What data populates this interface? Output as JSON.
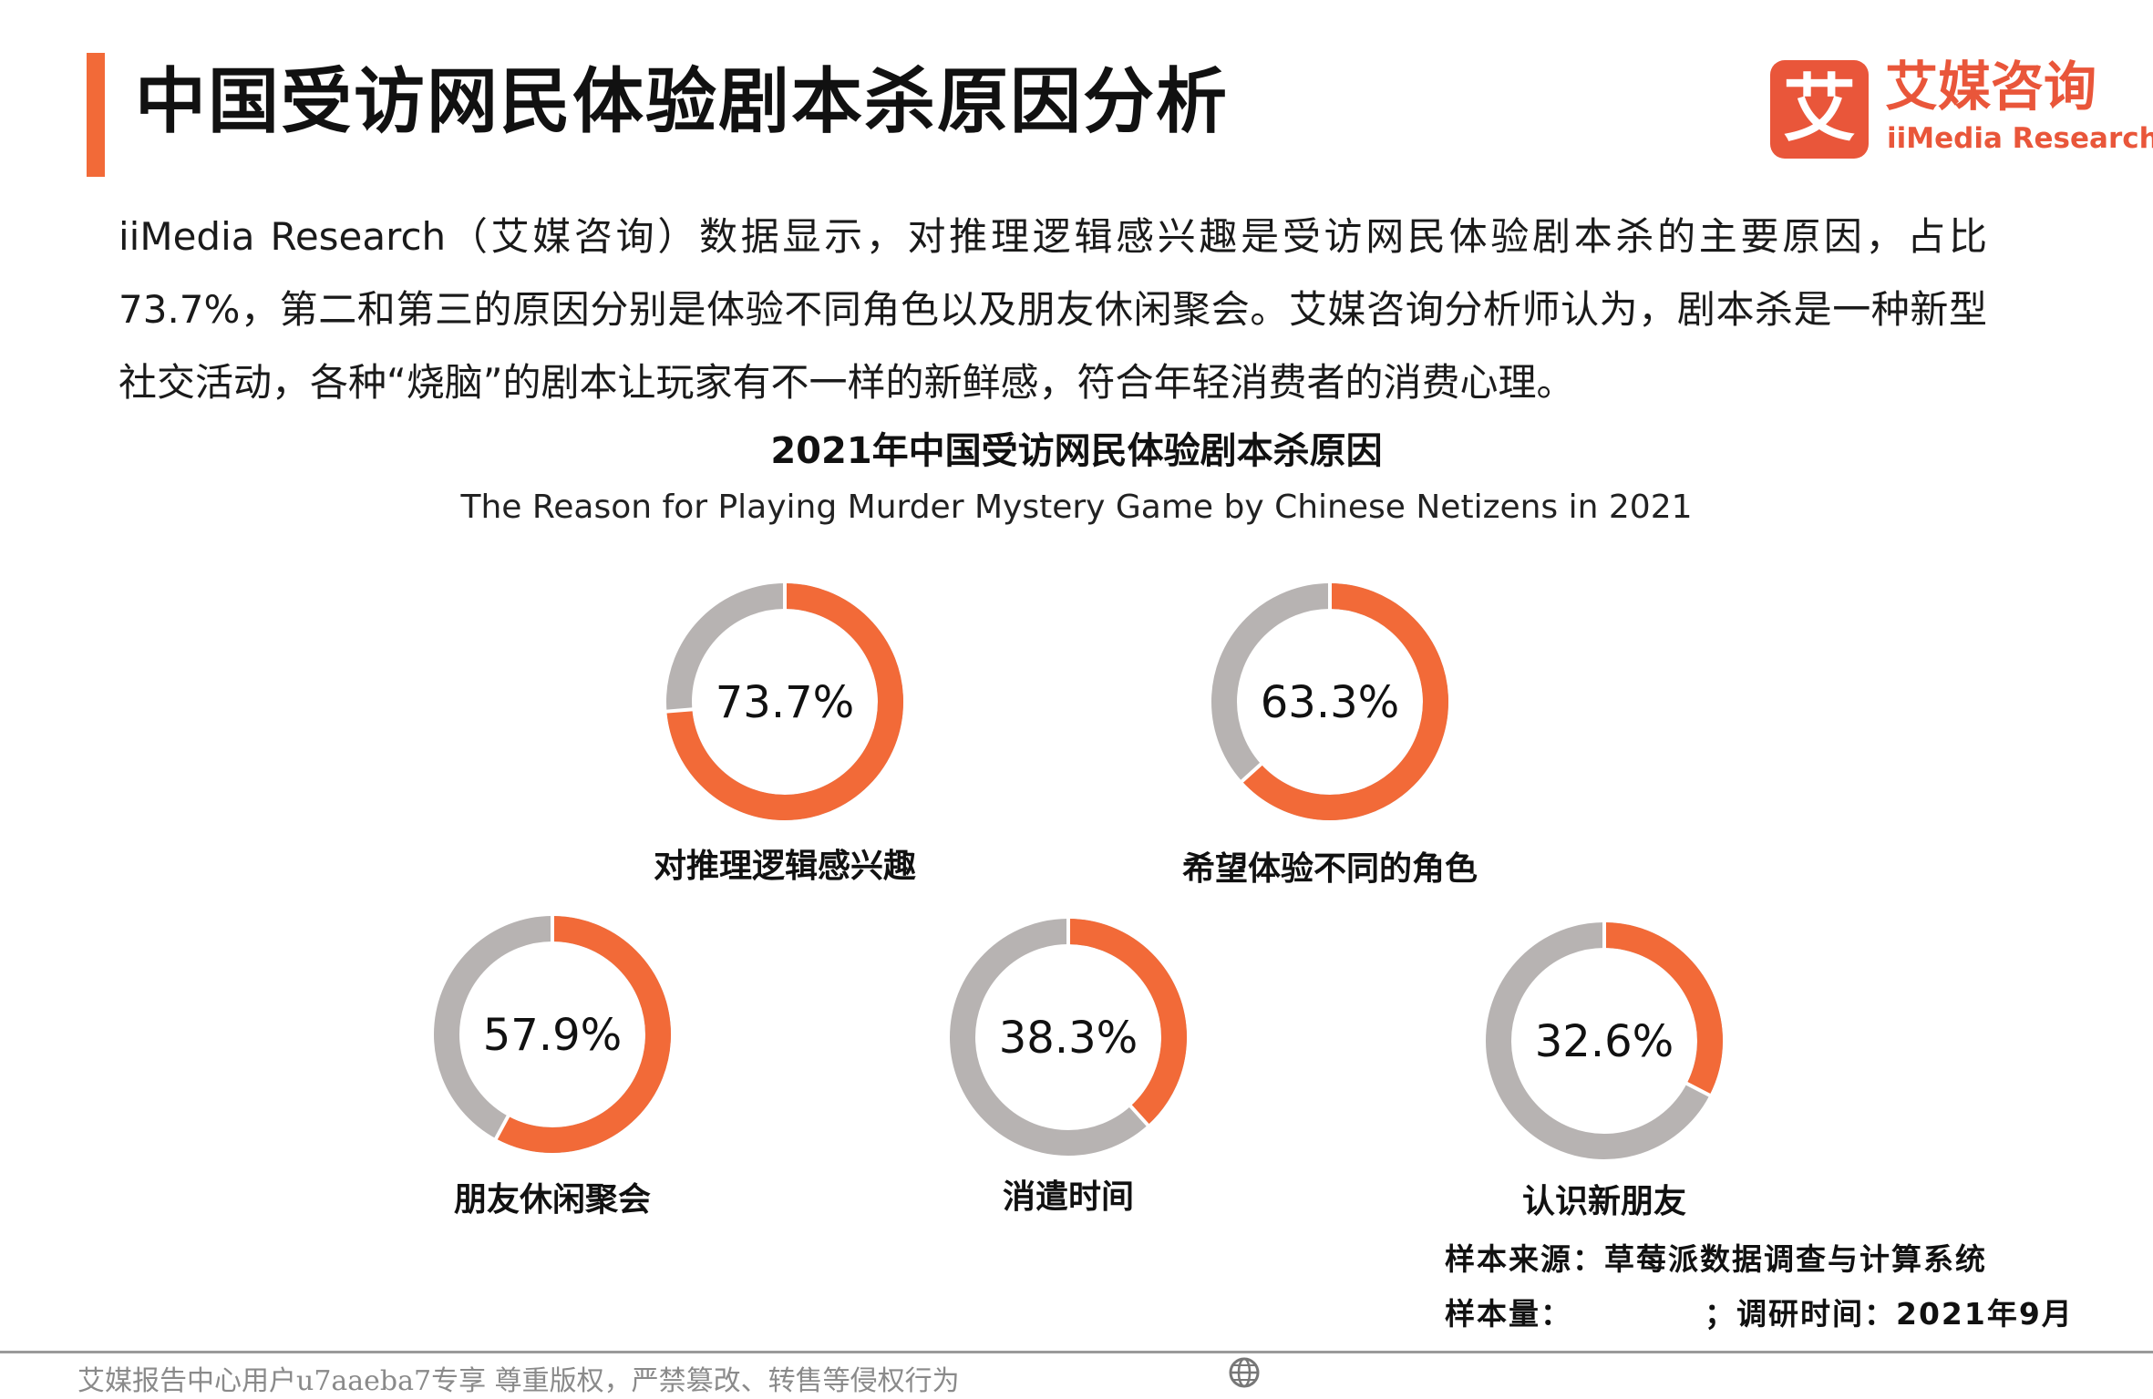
{
  "header": {
    "title": "中国受访网民体验剧本杀原因分析",
    "logo_mark": "艾",
    "logo_cn": "艾媒咨询",
    "logo_en": "iiMedia Research"
  },
  "description": "iiMedia Research（艾媒咨询）数据显示，对推理逻辑感兴趣是受访网民体验剧本杀的主要原因，占比73.7%，第二和第三的原因分别是体验不同角色以及朋友休闲聚会。艾媒咨询分析师认为，剧本杀是一种新型社交活动，各种“烧脑”的剧本让玩家有不一样的新鲜感，符合年轻消费者的消费心理。",
  "chart_data": {
    "type": "pie",
    "title": "2021年中国受访网民体验剧本杀原因",
    "subtitle": "The Reason for Playing Murder Mystery Game by Chinese Netizens in 2021",
    "unit": "%",
    "categories": [
      "对推理逻辑感兴趣",
      "希望体验不同的角色",
      "朋友休闲聚会",
      "消遣时间",
      "认识新朋友"
    ],
    "values": [
      73.7,
      63.3,
      57.9,
      38.3,
      32.6
    ],
    "value_labels": [
      "73.7%",
      "63.3%",
      "57.9%",
      "38.3%",
      "32.6%"
    ],
    "colors": {
      "filled": "#f26a38",
      "remainder": "#b7b3b2"
    }
  },
  "notes": {
    "source": "样本来源：草莓派数据调查与计算系统",
    "sample_label": "样本量：",
    "survey_time": "；调研时间：2021年9月"
  },
  "footer": {
    "text": "艾媒报告中心用户u7aaeba7专享 尊重版权，严禁篡改、转售等侵权行为",
    "icon": "globe-icon"
  }
}
